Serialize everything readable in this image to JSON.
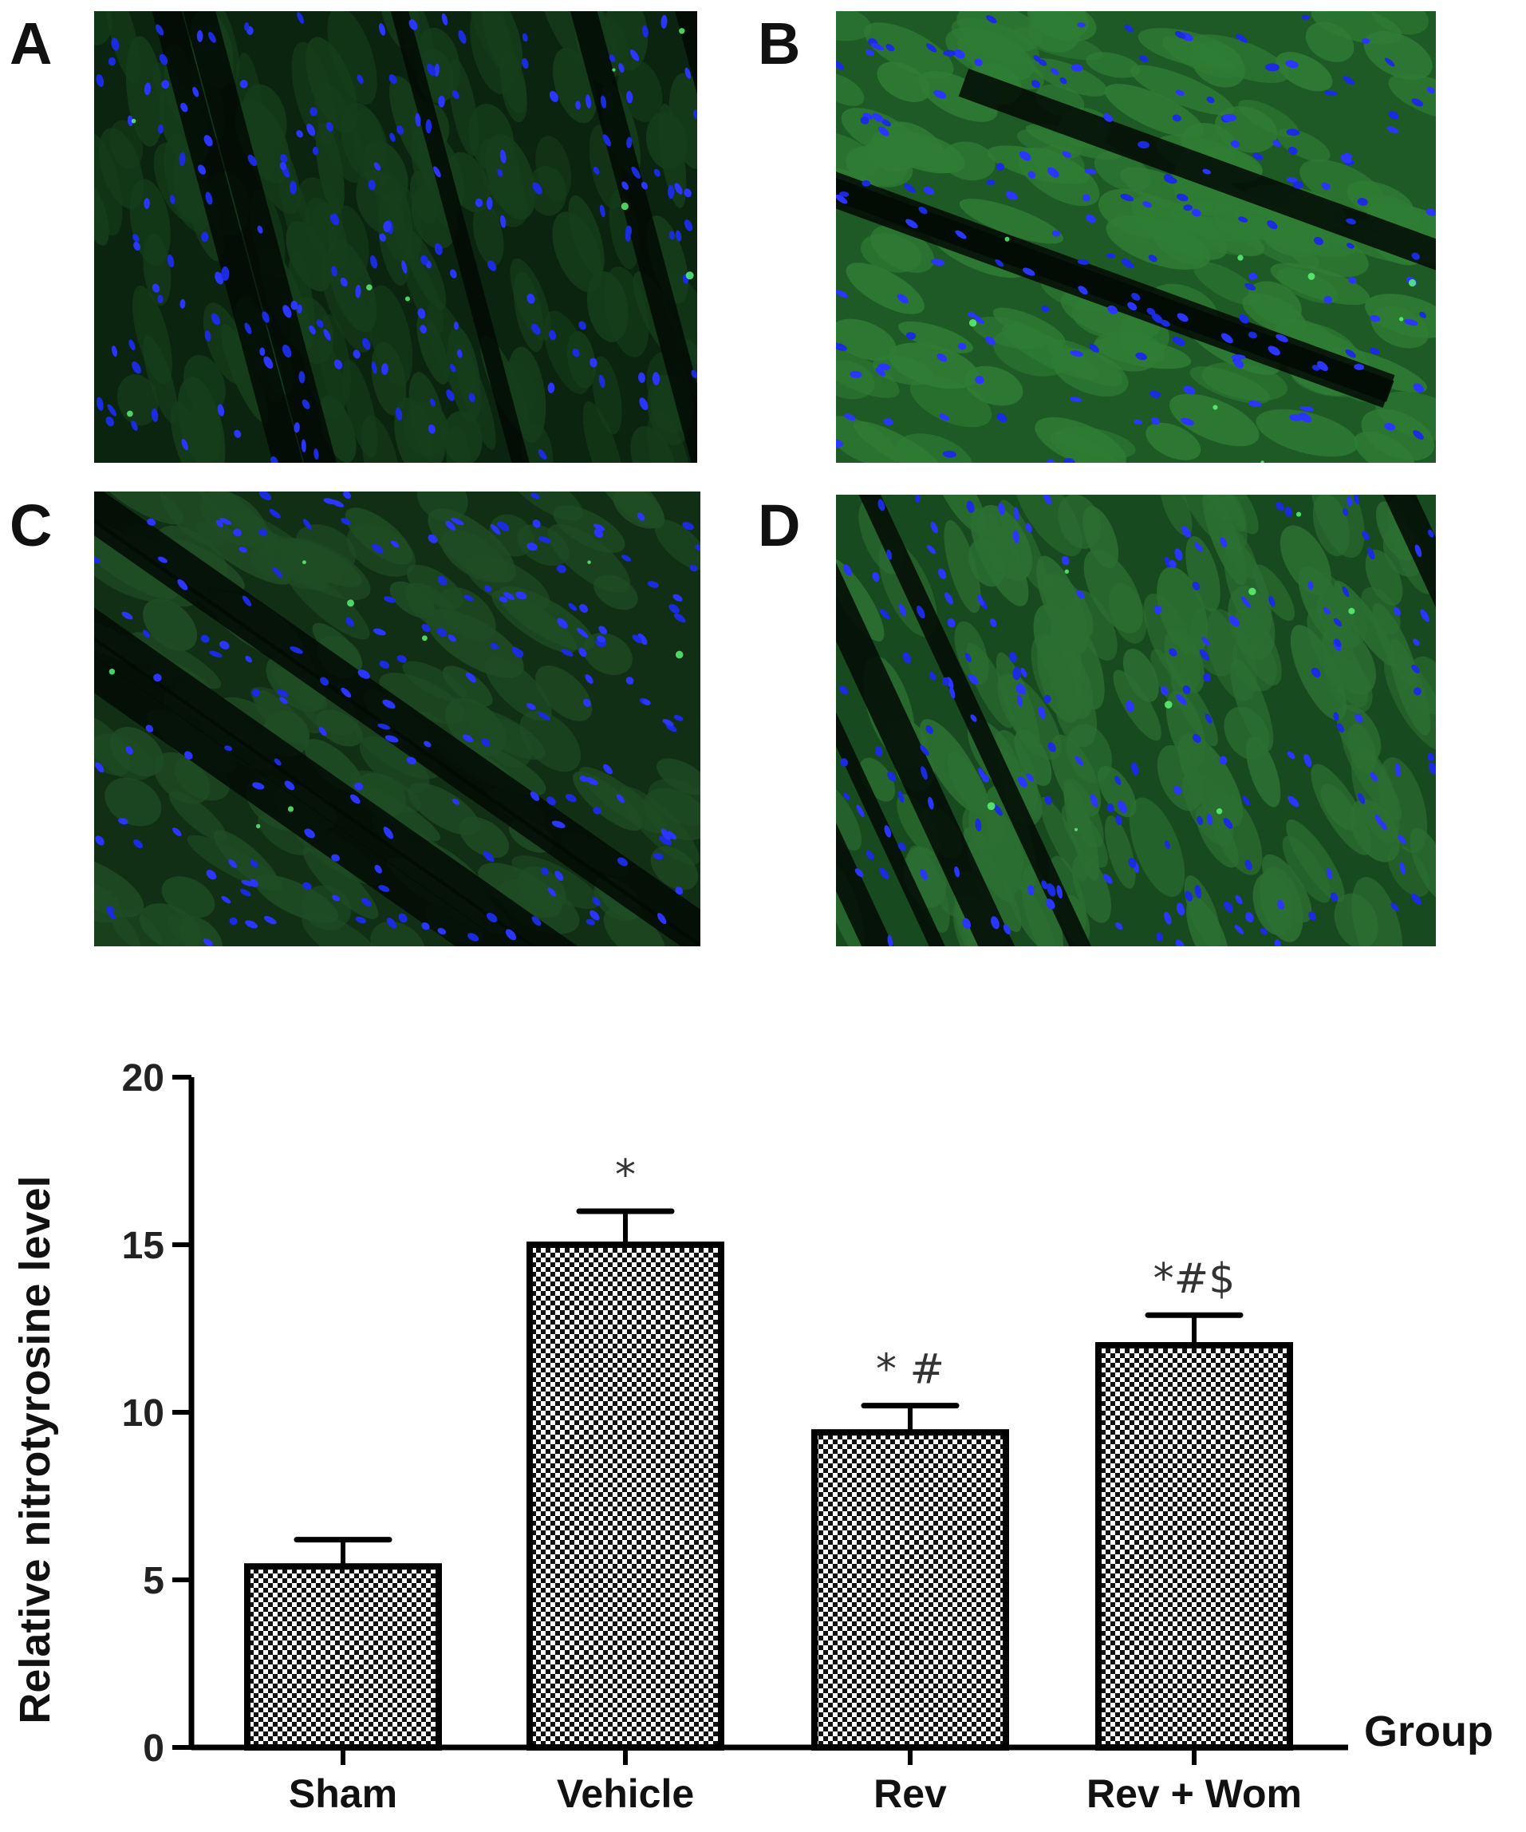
{
  "panels": [
    {
      "label": "A"
    },
    {
      "label": "B"
    },
    {
      "label": "C"
    },
    {
      "label": "D"
    }
  ],
  "chart_data": {
    "type": "bar",
    "categories": [
      "Sham",
      "Vehicle",
      "Rev",
      "Rev + Wom"
    ],
    "values": [
      5.4,
      15.0,
      9.4,
      12.0
    ],
    "errors": [
      0.8,
      1.0,
      0.8,
      0.9
    ],
    "annotations": [
      "",
      "*",
      "* #",
      "*#$"
    ],
    "xlabel": "Group",
    "ylabel": "Relative nitrotyrosine level",
    "ylim": [
      0,
      20
    ],
    "yticks": [
      0,
      5,
      10,
      15,
      20
    ],
    "grid": false,
    "legend": "none",
    "bar_fill": "checkerboard",
    "colors": {
      "axis": "#000000",
      "bar_fill_dark": "#111111",
      "bar_fill_light": "#ffffff"
    }
  }
}
